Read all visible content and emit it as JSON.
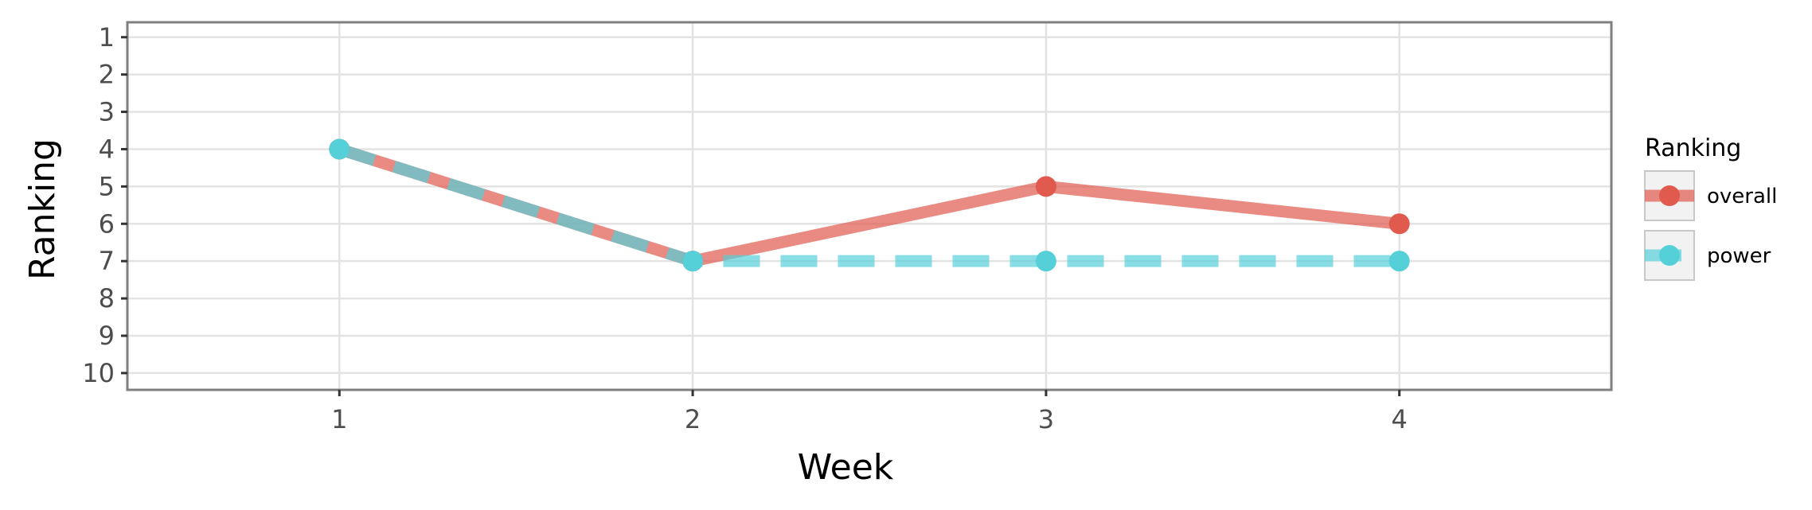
{
  "chart_data": {
    "type": "line",
    "xlabel": "Week",
    "ylabel": "Ranking",
    "x": [
      1,
      2,
      3,
      4
    ],
    "xlim": [
      0.4,
      4.6
    ],
    "ylim": [
      10.45,
      0.6
    ],
    "y_reversed": true,
    "xticks": [
      "1",
      "2",
      "3",
      "4"
    ],
    "yticks": [
      "1",
      "2",
      "3",
      "4",
      "5",
      "6",
      "7",
      "8",
      "9",
      "10"
    ],
    "grid": true,
    "legend": {
      "title": "Ranking",
      "placement": "right"
    },
    "series": [
      {
        "name": "overall",
        "values": [
          4,
          7,
          5,
          6
        ],
        "color": "#e05a4e",
        "line_style": "solid"
      },
      {
        "name": "power",
        "values": [
          4,
          7,
          7,
          7
        ],
        "color": "#55d0d8",
        "line_style": "dashed"
      }
    ]
  }
}
